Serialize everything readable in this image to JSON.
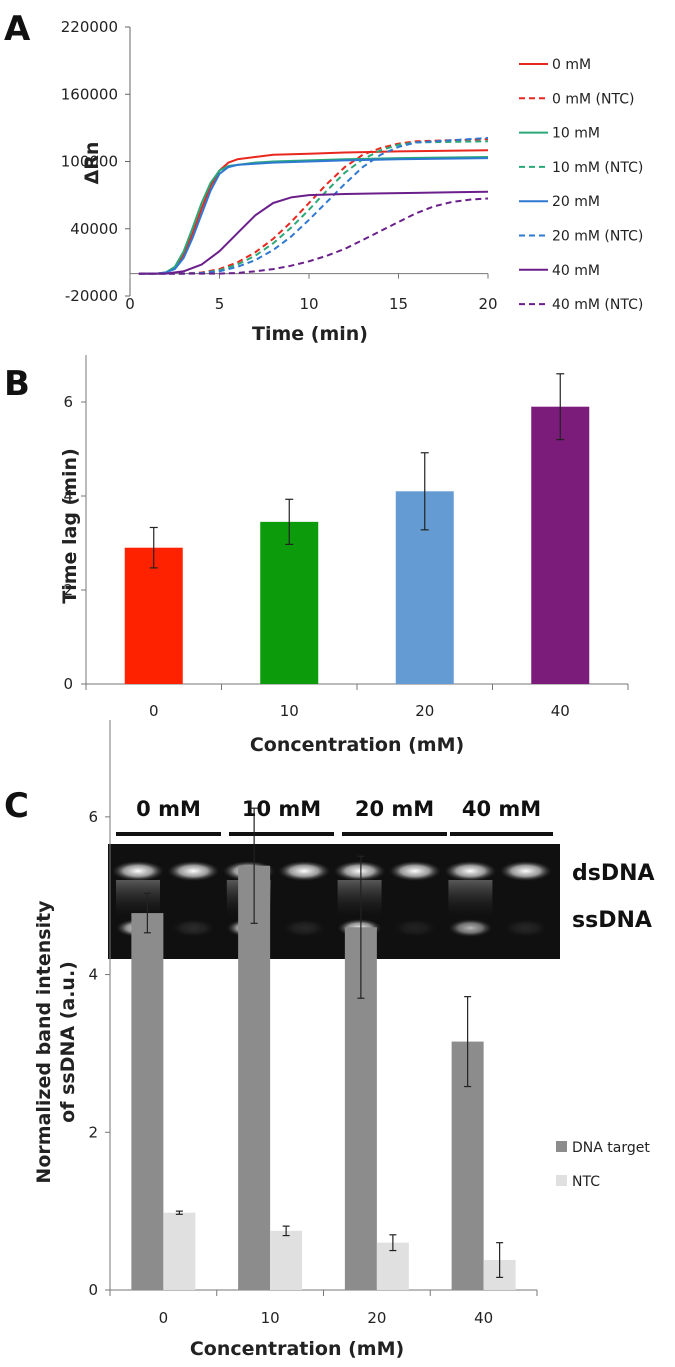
{
  "panels": {
    "a": "A",
    "b": "B",
    "c": "C"
  },
  "chart_data": [
    {
      "type": "line",
      "panel": "A",
      "xlabel": "Time (min)",
      "ylabel": "ΔRn",
      "xlim": [
        0,
        20
      ],
      "ylim": [
        -20000,
        220000
      ],
      "xticks": [
        "0",
        "5",
        "10",
        "15",
        "20"
      ],
      "yticks": [
        "-20000",
        "40000",
        "100000",
        "160000",
        "220000"
      ],
      "legend_position": "right",
      "grid": false,
      "series": [
        {
          "name": "0 mM",
          "color": "#e8281e",
          "dash": false,
          "x": [
            0.5,
            1.5,
            2,
            2.5,
            3,
            3.5,
            4,
            4.5,
            5,
            5.5,
            6,
            7,
            8,
            10,
            12,
            15,
            20
          ],
          "y": [
            0,
            0,
            1000,
            5000,
            17000,
            36000,
            58000,
            78000,
            92000,
            99000,
            102000,
            104000,
            106000,
            107000,
            108000,
            109000,
            110000
          ]
        },
        {
          "name": "0 mM (NTC)",
          "color": "#e8281e",
          "dash": true,
          "x": [
            0.5,
            3,
            4,
            5,
            6,
            7,
            8,
            9,
            10,
            11,
            12,
            13,
            14,
            15,
            16,
            20
          ],
          "y": [
            0,
            0,
            1000,
            4000,
            10000,
            19000,
            31000,
            46000,
            63000,
            80000,
            95000,
            106000,
            112000,
            116000,
            118000,
            120000
          ]
        },
        {
          "name": "10 mM",
          "color": "#2aa876",
          "dash": false,
          "x": [
            0.5,
            1.5,
            2,
            2.5,
            3,
            3.5,
            4,
            4.5,
            5,
            5.5,
            6,
            7,
            8,
            10,
            12,
            15,
            20
          ],
          "y": [
            0,
            0,
            1000,
            6000,
            20000,
            41000,
            63000,
            81000,
            92000,
            96000,
            97000,
            99000,
            100000,
            101000,
            102000,
            103000,
            104000
          ]
        },
        {
          "name": "10 mM (NTC)",
          "color": "#2aa876",
          "dash": true,
          "x": [
            0.5,
            3,
            4,
            5,
            6,
            7,
            8,
            9,
            10,
            11,
            12,
            13,
            14,
            15,
            16,
            20
          ],
          "y": [
            0,
            0,
            500,
            3000,
            8000,
            16000,
            27000,
            41000,
            57000,
            74000,
            90000,
            102000,
            110000,
            115000,
            117000,
            118000
          ]
        },
        {
          "name": "20 mM",
          "color": "#2f78d2",
          "dash": false,
          "x": [
            0.5,
            1.5,
            2,
            2.5,
            3,
            3.5,
            4,
            4.5,
            5,
            5.5,
            6,
            7,
            8,
            10,
            12,
            15,
            20
          ],
          "y": [
            0,
            0,
            1000,
            4000,
            14000,
            32000,
            53000,
            74000,
            89000,
            95000,
            97000,
            98000,
            99000,
            100000,
            101000,
            102000,
            103000
          ]
        },
        {
          "name": "20 mM (NTC)",
          "color": "#2f78d2",
          "dash": true,
          "x": [
            0.5,
            3,
            4,
            5,
            6,
            7,
            8,
            9,
            10,
            11,
            12,
            13,
            14,
            15,
            16,
            20
          ],
          "y": [
            0,
            0,
            400,
            2000,
            6000,
            12000,
            21000,
            33000,
            48000,
            64000,
            80000,
            95000,
            106000,
            113000,
            117000,
            121000
          ]
        },
        {
          "name": "40 mM",
          "color": "#6a1f8a",
          "dash": false,
          "x": [
            0.5,
            2,
            3,
            4,
            5,
            6,
            7,
            8,
            9,
            10,
            12,
            14,
            16,
            18,
            20
          ],
          "y": [
            0,
            0,
            2000,
            8000,
            20000,
            36000,
            52000,
            63000,
            68000,
            70000,
            71000,
            71500,
            72000,
            72500,
            73000
          ]
        },
        {
          "name": "40 mM (NTC)",
          "color": "#6a1f8a",
          "dash": true,
          "x": [
            0.5,
            5,
            6,
            7,
            8,
            9,
            10,
            11,
            12,
            13,
            14,
            15,
            16,
            17,
            18,
            19,
            20
          ],
          "y": [
            0,
            0,
            500,
            2000,
            4000,
            7000,
            11000,
            16000,
            22000,
            30000,
            38000,
            46000,
            54000,
            60000,
            64000,
            66000,
            67000
          ]
        }
      ]
    },
    {
      "type": "bar",
      "panel": "B",
      "xlabel": "Concentration (mM)",
      "ylabel": "Time lag (min)",
      "categories": [
        "0",
        "10",
        "20",
        "40"
      ],
      "values": [
        2.9,
        3.45,
        4.1,
        5.9
      ],
      "errors": [
        0.43,
        0.48,
        0.82,
        0.7
      ],
      "colors": [
        "#ff2200",
        "#0b9b0b",
        "#659bd3",
        "#7b1c7b"
      ],
      "ylim": [
        0,
        7
      ],
      "yticks": [
        "0",
        "2",
        "4",
        "6"
      ],
      "grid": false
    },
    {
      "type": "bar",
      "panel": "C",
      "xlabel": "Concentration (mM)",
      "ylabel_lines": [
        "Normalized band intensity",
        "of ssDNA (a.u.)"
      ],
      "categories": [
        "0",
        "10",
        "20",
        "40"
      ],
      "ylim": [
        0,
        7
      ],
      "yticks": [
        "0",
        "2",
        "4",
        "6"
      ],
      "legend_position": "right",
      "grid": false,
      "series": [
        {
          "name": "DNA target",
          "color": "#8c8c8c",
          "values": [
            4.78,
            5.38,
            4.6,
            3.15
          ],
          "errors": [
            0.25,
            0.73,
            0.9,
            0.57
          ]
        },
        {
          "name": "NTC",
          "color": "#e0e0e0",
          "values": [
            0.98,
            0.75,
            0.6,
            0.38
          ],
          "errors": [
            0.02,
            0.06,
            0.1,
            0.22
          ]
        }
      ]
    }
  ],
  "gel": {
    "lane_groups": [
      "0 mM",
      "10 mM",
      "20 mM",
      "40 mM"
    ],
    "lane_signs": [
      "+",
      "-",
      "+",
      "-",
      "+",
      "-",
      "+",
      "-"
    ],
    "band_labels": [
      "dsDNA",
      "ssDNA"
    ],
    "ssdna_band_strength": [
      0.9,
      0.12,
      1.0,
      0.1,
      0.95,
      0.08,
      0.7,
      0.1
    ]
  }
}
